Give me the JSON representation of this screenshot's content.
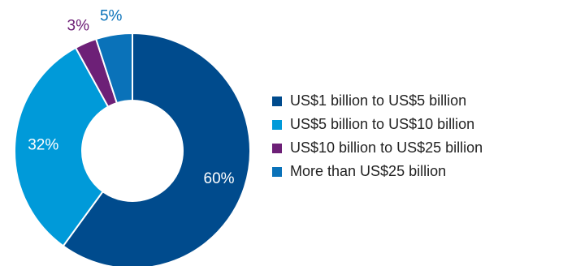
{
  "chart_data": {
    "type": "pie",
    "donut": true,
    "legend_position": "right",
    "start_angle_deg": 0,
    "direction": "clockwise",
    "categories": [
      "US$1 billion to US$5 billion",
      "US$5 billion to US$10 billion",
      "US$10 billion to US$25 billion",
      "More than US$25 billion"
    ],
    "values": [
      60,
      32,
      3,
      5
    ],
    "value_labels": [
      "60%",
      "32%",
      "3%",
      "5%"
    ],
    "colors": [
      "#004b8d",
      "#009ad9",
      "#6d2077",
      "#0a72b9"
    ],
    "label_colors": [
      "#ffffff",
      "#ffffff",
      "#6d2077",
      "#0a72b9"
    ]
  }
}
